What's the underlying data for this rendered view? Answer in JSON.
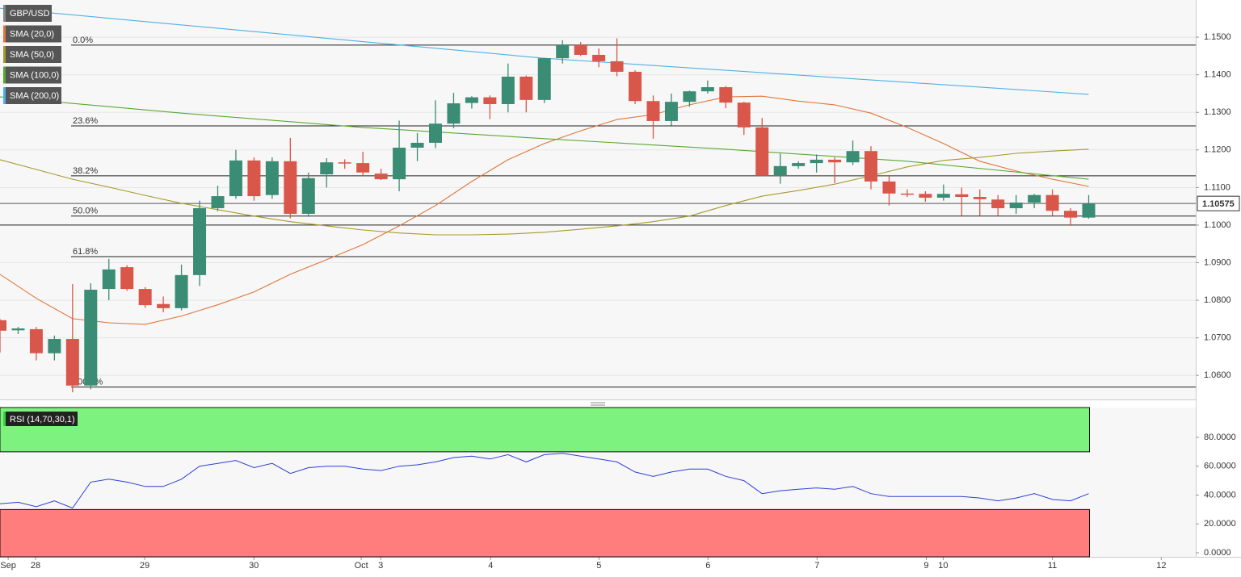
{
  "chart_data": {
    "type": "candlestick",
    "legend": [
      "GBP/USD"
    ],
    "xlim": [
      0,
      65.9
    ],
    "xticks": [
      {
        "value": 0.45,
        "label": "Sep"
      },
      {
        "value": 1.96,
        "label": "28"
      },
      {
        "value": 7.97,
        "label": "29"
      },
      {
        "value": 13.99,
        "label": "30"
      },
      {
        "value": 19.91,
        "label": "Oct"
      },
      {
        "value": 20.98,
        "label": "3"
      },
      {
        "value": 27.04,
        "label": "4"
      },
      {
        "value": 33.01,
        "label": "5"
      },
      {
        "value": 39.02,
        "label": "6"
      },
      {
        "value": 45.03,
        "label": "7"
      },
      {
        "value": 51.05,
        "label": "9"
      },
      {
        "value": 51.98,
        "label": "10"
      },
      {
        "value": 58.0,
        "label": "11"
      },
      {
        "value": 64.0,
        "label": "12"
      }
    ],
    "ylim": [
      1.0536,
      1.1599
    ],
    "yticks": [
      {
        "value": 1.06,
        "label": "1.0600"
      },
      {
        "value": 1.07,
        "label": "1.0700"
      },
      {
        "value": 1.08,
        "label": "1.0800"
      },
      {
        "value": 1.09,
        "label": "1.0900"
      },
      {
        "value": 1.1,
        "label": "1.1000"
      },
      {
        "value": 1.11,
        "label": "1.1100"
      },
      {
        "value": 1.12,
        "label": "1.1200"
      },
      {
        "value": 1.13,
        "label": "1.1300"
      },
      {
        "value": 1.14,
        "label": "1.1400"
      },
      {
        "value": 1.15,
        "label": "1.1500"
      }
    ],
    "up_color": "#3b8c74",
    "down_color": "#d9574a",
    "open": [
      1.0747,
      1.072,
      1.0723,
      1.0659,
      1.0697,
      1.0573,
      1.083,
      1.0888,
      1.083,
      1.079,
      1.0779,
      1.0867,
      1.1045,
      1.1077,
      1.1172,
      1.108,
      1.117,
      1.103,
      1.1135,
      1.1167,
      1.1165,
      1.1137,
      1.1122,
      1.1206,
      1.1219,
      1.127,
      1.1325,
      1.134,
      1.1322,
      1.1395,
      1.1333,
      1.1444,
      1.1479,
      1.1453,
      1.1436,
      1.1408,
      1.133,
      1.1277,
      1.1328,
      1.1356,
      1.1367,
      1.1326,
      1.126,
      1.1133,
      1.1157,
      1.1165,
      1.1174,
      1.1167,
      1.1197,
      1.1116,
      1.1084,
      1.1083,
      1.1073,
      1.1082,
      1.1075,
      1.1068,
      1.1045,
      1.106,
      1.108,
      1.1038,
      1.102
    ],
    "high": [
      1.075,
      1.0729,
      1.0729,
      1.0706,
      1.0843,
      1.0845,
      1.091,
      1.0893,
      1.0835,
      1.081,
      1.0895,
      1.1065,
      1.1105,
      1.12,
      1.118,
      1.118,
      1.1232,
      1.114,
      1.1178,
      1.1175,
      1.1195,
      1.115,
      1.1278,
      1.1245,
      1.1332,
      1.1352,
      1.1343,
      1.1345,
      1.143,
      1.1398,
      1.1445,
      1.1492,
      1.1487,
      1.147,
      1.1497,
      1.1412,
      1.1345,
      1.135,
      1.1358,
      1.1385,
      1.137,
      1.1328,
      1.1285,
      1.119,
      1.117,
      1.1188,
      1.118,
      1.1225,
      1.121,
      1.113,
      1.1095,
      1.109,
      1.1108,
      1.11,
      1.1095,
      1.108,
      1.108,
      1.1083,
      1.1095,
      1.1045,
      1.108
    ],
    "low": [
      1.0661,
      1.071,
      1.064,
      1.064,
      1.0555,
      1.0563,
      1.08,
      1.0825,
      1.078,
      1.0768,
      1.0773,
      1.0838,
      1.1037,
      1.107,
      1.1065,
      1.107,
      1.1018,
      1.1022,
      1.11,
      1.115,
      1.113,
      1.112,
      1.109,
      1.117,
      1.1205,
      1.1258,
      1.131,
      1.1282,
      1.13,
      1.13,
      1.1325,
      1.143,
      1.145,
      1.142,
      1.1396,
      1.1322,
      1.123,
      1.1265,
      1.1315,
      1.135,
      1.1311,
      1.124,
      1.113,
      1.111,
      1.115,
      1.114,
      1.1112,
      1.116,
      1.1095,
      1.1052,
      1.1075,
      1.1062,
      1.1065,
      1.1025,
      1.1025,
      1.1025,
      1.103,
      1.1045,
      1.1025,
      1.0998,
      1.1017
    ],
    "close": [
      1.0719,
      1.0725,
      1.0659,
      1.0697,
      1.0573,
      1.0828,
      1.0882,
      1.083,
      1.0787,
      1.0779,
      1.0867,
      1.1045,
      1.1077,
      1.1172,
      1.1077,
      1.117,
      1.103,
      1.1125,
      1.1167,
      1.1165,
      1.114,
      1.1122,
      1.1206,
      1.1219,
      1.127,
      1.1324,
      1.134,
      1.1322,
      1.1395,
      1.1333,
      1.1444,
      1.1479,
      1.1453,
      1.1436,
      1.1408,
      1.133,
      1.1277,
      1.1328,
      1.1356,
      1.1367,
      1.1326,
      1.126,
      1.1133,
      1.1157,
      1.1165,
      1.1174,
      1.1167,
      1.1197,
      1.1116,
      1.1084,
      1.1082,
      1.1073,
      1.1083,
      1.1075,
      1.1069,
      1.1045,
      1.106,
      1.108,
      1.1038,
      1.102,
      1.10575
    ],
    "last_price": 1.10575,
    "horizontal_lines": [
      1.1
    ],
    "fib_levels": [
      {
        "label": "0.0%",
        "price": 1.1479
      },
      {
        "label": "23.6%",
        "price": 1.1264
      },
      {
        "label": "38.2%",
        "price": 1.1131
      },
      {
        "label": "50.0%",
        "price": 1.1024
      },
      {
        "label": "61.8%",
        "price": 1.0916
      },
      {
        "label": "100.0%",
        "price": 1.0569
      }
    ],
    "series": [
      {
        "name": "SMA (20,0)",
        "color": "#e0763a",
        "x": [
          0,
          2,
          4,
          6,
          8,
          10,
          12,
          14,
          16,
          18,
          20,
          22,
          24,
          26,
          28,
          30,
          32,
          34,
          36,
          38,
          40,
          42,
          44,
          46,
          48,
          50,
          52,
          54,
          56,
          58,
          60
        ],
        "values": [
          1.0869,
          1.0805,
          1.0751,
          1.074,
          1.0736,
          1.0758,
          1.0788,
          1.0822,
          1.0869,
          1.0908,
          1.0948,
          1.0998,
          1.1052,
          1.1116,
          1.1174,
          1.1217,
          1.1251,
          1.1281,
          1.1294,
          1.132,
          1.1341,
          1.1343,
          1.133,
          1.132,
          1.1298,
          1.126,
          1.1217,
          1.117,
          1.1144,
          1.1122,
          1.1103
        ]
      },
      {
        "name": "SMA (50,0)",
        "color": "#a89a2c",
        "x": [
          0,
          2,
          4,
          6,
          8,
          10,
          12,
          14,
          16,
          18,
          20,
          22,
          24,
          26,
          28,
          30,
          32,
          34,
          36,
          38,
          40,
          42,
          44,
          46,
          48,
          50,
          52,
          54,
          56,
          58,
          60
        ],
        "values": [
          1.1174,
          1.1148,
          1.1122,
          1.1101,
          1.1079,
          1.1058,
          1.1041,
          1.1024,
          1.1009,
          1.0998,
          1.0987,
          1.0979,
          1.0974,
          1.0974,
          1.0976,
          1.0981,
          1.0989,
          1.0998,
          1.1009,
          1.1024,
          1.1052,
          1.1077,
          1.1092,
          1.1109,
          1.1131,
          1.1155,
          1.1172,
          1.118,
          1.1191,
          1.1197,
          1.1202
        ]
      },
      {
        "name": "SMA (100,0)",
        "color": "#5aa832",
        "x": [
          0,
          10,
          20,
          30,
          40,
          50,
          60
        ],
        "values": [
          1.1341,
          1.1298,
          1.126,
          1.123,
          1.1202,
          1.117,
          1.1122
        ]
      },
      {
        "name": "SMA (200,0)",
        "color": "#4fb0e6",
        "x": [
          0,
          30,
          60
        ],
        "values": [
          1.1577,
          1.1444,
          1.1348
        ]
      }
    ],
    "rsi": {
      "name": "RSI (14,70,30,1)",
      "color": "#2c3fd6",
      "ylim": [
        -2.8,
        100.7
      ],
      "yticks": [
        {
          "value": 0,
          "label": "0.0000"
        },
        {
          "value": 20,
          "label": "20.0000"
        },
        {
          "value": 40,
          "label": "40.0000"
        },
        {
          "value": 60,
          "label": "60.0000"
        },
        {
          "value": 80,
          "label": "80.0000"
        }
      ],
      "overbought": 70,
      "oversold": 30,
      "values": [
        34,
        35,
        32,
        36,
        31,
        49,
        51,
        49,
        46,
        46,
        51,
        60,
        62,
        64,
        59,
        62,
        55,
        59,
        60,
        60,
        58,
        57,
        60,
        61,
        63,
        66,
        67,
        65,
        68,
        63,
        68,
        69,
        67,
        65,
        63,
        56,
        53,
        56,
        58,
        58,
        53,
        50,
        41,
        43,
        44,
        45,
        44,
        46,
        41,
        39,
        39,
        39,
        39,
        39,
        38,
        36,
        38,
        41,
        37,
        36,
        41
      ]
    }
  }
}
